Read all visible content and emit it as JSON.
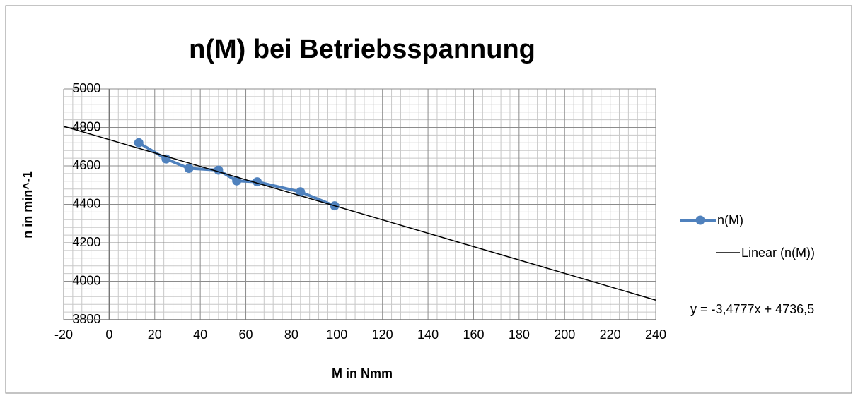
{
  "chart_data": {
    "type": "scatter",
    "title": "n(M) bei Betriebsspannung",
    "x_label": "M in Nmm",
    "y_label": "n in min^-1",
    "series": [
      {
        "name": "n(M)",
        "color": "#4f81bd",
        "x": [
          13,
          25,
          35,
          48,
          56,
          65,
          84,
          99
        ],
        "values": [
          4720,
          4636,
          4587,
          4578,
          4522,
          4517,
          4465,
          4392
        ]
      }
    ],
    "trendline": {
      "name": "Linear (n(M))",
      "color": "#000000",
      "slope": -3.4777,
      "intercept": 4736.5,
      "label": "y = -3,4777x + 4736,5"
    },
    "xlim": [
      -20,
      240
    ],
    "xticks": [
      -20,
      0,
      20,
      40,
      60,
      80,
      100,
      120,
      140,
      160,
      180,
      200,
      220,
      240
    ],
    "ylim": [
      3800,
      5000
    ],
    "yticks": [
      3800,
      4000,
      4200,
      4400,
      4600,
      4800,
      5000
    ],
    "grid": true,
    "minor_grid": true,
    "legend": "right"
  }
}
